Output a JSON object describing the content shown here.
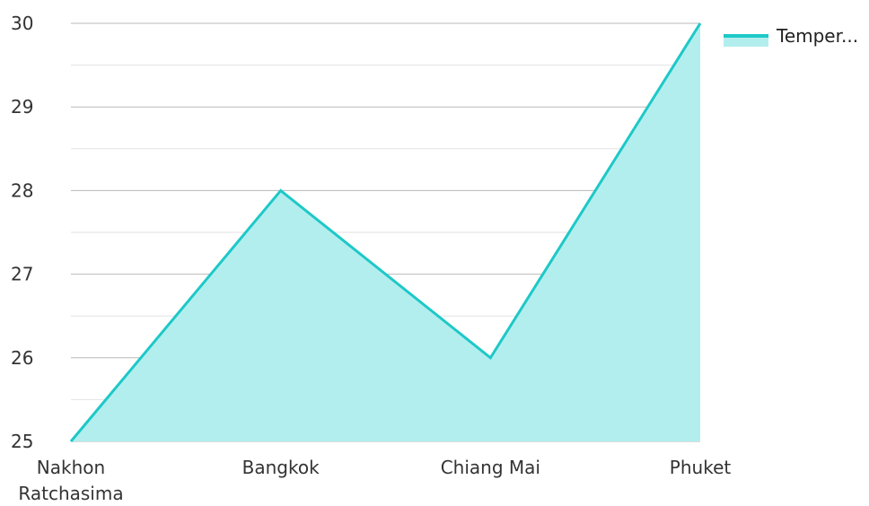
{
  "chart_data": {
    "type": "area",
    "categories": [
      [
        "Nakhon",
        "Ratchasima"
      ],
      [
        "Bangkok"
      ],
      [
        "Chiang Mai"
      ],
      [
        "Phuket"
      ]
    ],
    "series": [
      {
        "name": "Temper...",
        "values": [
          25,
          28,
          26,
          30
        ]
      }
    ],
    "ylim": [
      25,
      30
    ],
    "yticks": [
      25,
      26,
      27,
      28,
      29,
      30
    ],
    "grid": true,
    "minor_grid": true,
    "legend_position": "top-right",
    "colors": {
      "line": "#1ec8c8",
      "fill": "#b3eeee",
      "major_grid": "#b8b8b8",
      "minor_grid": "#e2e2e2"
    }
  }
}
